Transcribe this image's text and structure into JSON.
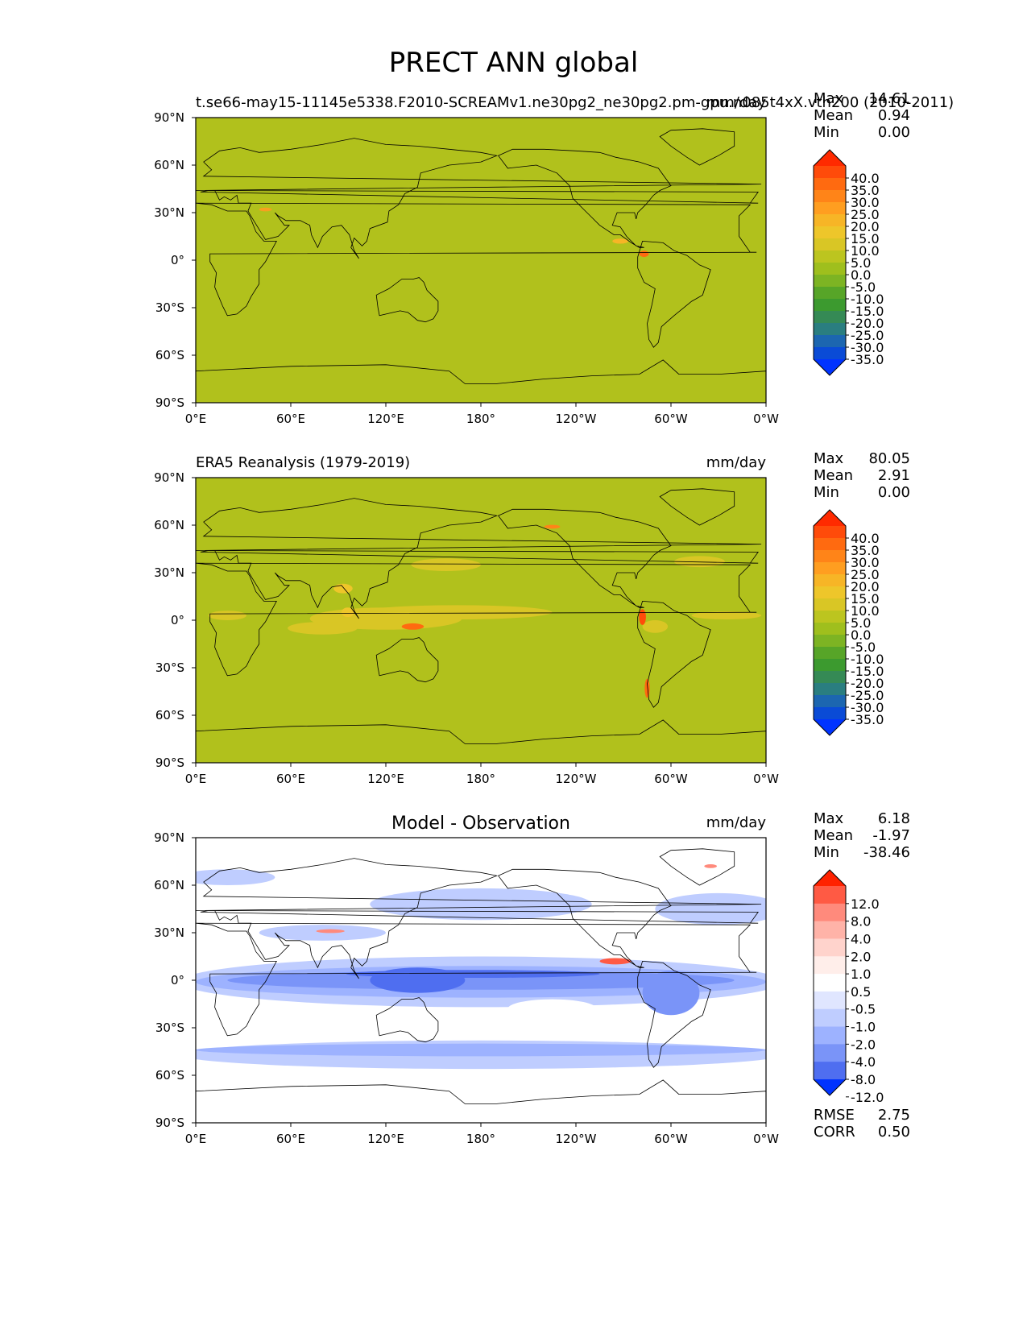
{
  "figure": {
    "title": "PRECT ANN global"
  },
  "chart_data": [
    {
      "type": "heatmap",
      "panel": "test",
      "left_title": "t.se66-may15-11145e5338.F2010-SCREAMv1.ne30pg2_ne30pg2.pm-gpu.n085t4xX.vth200 (2010-2011)",
      "center_title": "",
      "units": "mm/day",
      "stats": [
        {
          "label": "Max",
          "value": "14.61"
        },
        {
          "label": "Mean",
          "value": "0.94"
        },
        {
          "label": "Min",
          "value": "0.00"
        }
      ],
      "colorbar_labels": [
        "40.0",
        "35.0",
        "30.0",
        "25.0",
        "20.0",
        "15.0",
        "10.0",
        "5.0",
        "0.0",
        "-5.0",
        "-10.0",
        "-15.0",
        "-20.0",
        "-25.0",
        "-30.0",
        "-35.0"
      ],
      "colorbar_colors": [
        "#ff2a00",
        "#ff4b0a",
        "#ff6a10",
        "#ff8418",
        "#ff9e20",
        "#f7b526",
        "#eec62a",
        "#d9c625",
        "#bcc51f",
        "#9fbf1d",
        "#7db423",
        "#57a528",
        "#3c9a2f",
        "#358a55",
        "#2a7e80",
        "#1c66b0",
        "#0a4bd6",
        "#0033ff"
      ],
      "background": "#b1c11c",
      "x_ticks": [
        "0°E",
        "60°E",
        "120°E",
        "180°",
        "120°W",
        "60°W",
        "0°W"
      ],
      "y_ticks": [
        "90°N",
        "60°N",
        "30°N",
        "0°",
        "30°S",
        "60°S",
        "90°S"
      ],
      "xlim": [
        0,
        360
      ],
      "ylim": [
        -90,
        90
      ]
    },
    {
      "type": "heatmap",
      "panel": "reference",
      "left_title": "ERA5 Reanalysis (1979-2019)",
      "center_title": "",
      "units": "mm/day",
      "stats": [
        {
          "label": "Max",
          "value": "80.05"
        },
        {
          "label": "Mean",
          "value": "2.91"
        },
        {
          "label": "Min",
          "value": "0.00"
        }
      ],
      "colorbar_labels": [
        "40.0",
        "35.0",
        "30.0",
        "25.0",
        "20.0",
        "15.0",
        "10.0",
        "5.0",
        "0.0",
        "-5.0",
        "-10.0",
        "-15.0",
        "-20.0",
        "-25.0",
        "-30.0",
        "-35.0"
      ],
      "colorbar_colors": [
        "#ff2a00",
        "#ff4b0a",
        "#ff6a10",
        "#ff8418",
        "#ff9e20",
        "#f7b526",
        "#eec62a",
        "#d9c625",
        "#bcc51f",
        "#9fbf1d",
        "#7db423",
        "#57a528",
        "#3c9a2f",
        "#358a55",
        "#2a7e80",
        "#1c66b0",
        "#0a4bd6",
        "#0033ff"
      ],
      "background": "#b1c11c",
      "x_ticks": [
        "0°E",
        "60°E",
        "120°E",
        "180°",
        "120°W",
        "60°W",
        "0°W"
      ],
      "y_ticks": [
        "90°N",
        "60°N",
        "30°N",
        "0°",
        "30°S",
        "60°S",
        "90°S"
      ],
      "xlim": [
        0,
        360
      ],
      "ylim": [
        -90,
        90
      ]
    },
    {
      "type": "heatmap",
      "panel": "difference",
      "left_title": "",
      "center_title": "Model - Observation",
      "units": "mm/day",
      "stats": [
        {
          "label": "Max",
          "value": "6.18"
        },
        {
          "label": "Mean",
          "value": "-1.97"
        },
        {
          "label": "Min",
          "value": "-38.46"
        }
      ],
      "extra_stats": [
        {
          "label": "RMSE",
          "value": "2.75"
        },
        {
          "label": "CORR",
          "value": "0.50"
        }
      ],
      "colorbar_labels": [
        "12.0",
        "8.0",
        "4.0",
        "2.0",
        "1.0",
        "0.5",
        "-0.5",
        "-1.0",
        "-2.0",
        "-4.0",
        "-8.0",
        "-12.0"
      ],
      "colorbar_colors": [
        "#ff2200",
        "#ff5a44",
        "#ff8a7c",
        "#ffb3a8",
        "#ffd3cc",
        "#ffeeea",
        "#ffffff",
        "#e0e6ff",
        "#bfcdff",
        "#9db2ff",
        "#7a94f8",
        "#4f6ef0",
        "#0033ff"
      ],
      "background": "#ffffff",
      "x_ticks": [
        "0°E",
        "60°E",
        "120°E",
        "180°",
        "120°W",
        "60°W",
        "0°W"
      ],
      "y_ticks": [
        "90°N",
        "60°N",
        "30°N",
        "0°",
        "30°S",
        "60°S",
        "90°S"
      ],
      "xlim": [
        0,
        360
      ],
      "ylim": [
        -90,
        90
      ]
    }
  ]
}
